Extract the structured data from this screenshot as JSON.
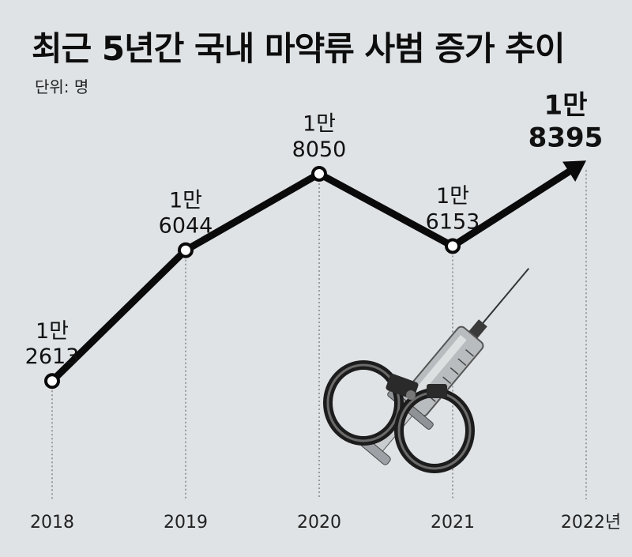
{
  "chart_data": {
    "type": "line",
    "title": "최근 5년간 국내 마약류 사범 증가 추이",
    "unit_label": "단위: 명",
    "x": [
      "2018",
      "2019",
      "2020",
      "2021",
      "2022년"
    ],
    "series": [
      {
        "values": [
          12613,
          16044,
          18050,
          16153,
          18395
        ]
      }
    ],
    "data_labels": [
      {
        "line1": "1만",
        "line2": "2613"
      },
      {
        "line1": "1만",
        "line2": "6044"
      },
      {
        "line1": "1만",
        "line2": "8050"
      },
      {
        "line1": "1만",
        "line2": "6153"
      },
      {
        "line1": "1만",
        "line2": "8395"
      }
    ],
    "ylim": [
      11000,
      19500
    ],
    "grid": "vertical dotted guide lines",
    "colors": {
      "line": "#0a0a0a",
      "background": "#dfe3e6",
      "marker_fill": "#ffffff"
    },
    "illustration": "handcuffs-and-syringe"
  }
}
